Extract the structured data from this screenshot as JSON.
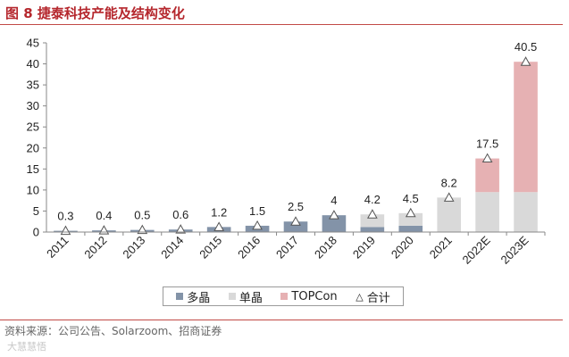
{
  "header": {
    "title": "图 8 捷泰科技产能及结构变化"
  },
  "footer": {
    "source": "资料来源：公司公告、Solarzoom、招商证券",
    "watermark": "大慧慧悟"
  },
  "colors": {
    "multi": "#8393a8",
    "mono": "#d9d9d9",
    "topcon": "#e6b1b3",
    "total_marker": "#555555"
  },
  "chart_data": {
    "type": "bar",
    "stacked": true,
    "title": "",
    "xlabel": "",
    "ylabel": "",
    "ylim": [
      0,
      45
    ],
    "yticks": [
      0,
      5,
      10,
      15,
      20,
      25,
      30,
      35,
      40,
      45
    ],
    "grid": false,
    "legend_position": "bottom",
    "categories": [
      "2011",
      "2012",
      "2013",
      "2014",
      "2015",
      "2016",
      "2017",
      "2018",
      "2019",
      "2020",
      "2021",
      "2022E",
      "2023E"
    ],
    "series": [
      {
        "name": "多晶",
        "values": [
          0.3,
          0.4,
          0.5,
          0.6,
          1.2,
          1.5,
          2.5,
          4,
          1.2,
          1.5,
          0,
          0,
          0
        ]
      },
      {
        "name": "单晶",
        "values": [
          0,
          0,
          0,
          0,
          0,
          0,
          0,
          0,
          3,
          3,
          8.2,
          9.5,
          9.5
        ]
      },
      {
        "name": "TOPCon",
        "values": [
          0,
          0,
          0,
          0,
          0,
          0,
          0,
          0,
          0,
          0,
          0,
          8,
          31
        ]
      }
    ],
    "totals": {
      "name": "合计",
      "values": [
        0.3,
        0.4,
        0.5,
        0.6,
        1.2,
        1.5,
        2.5,
        4,
        4.2,
        4.5,
        8.2,
        17.5,
        40.5
      ],
      "labels": [
        "0.3",
        "0.4",
        "0.5",
        "0.6",
        "1.2",
        "1.5",
        "2.5",
        "4",
        "4.2",
        "4.5",
        "8.2",
        "17.5",
        "40.5"
      ]
    }
  }
}
